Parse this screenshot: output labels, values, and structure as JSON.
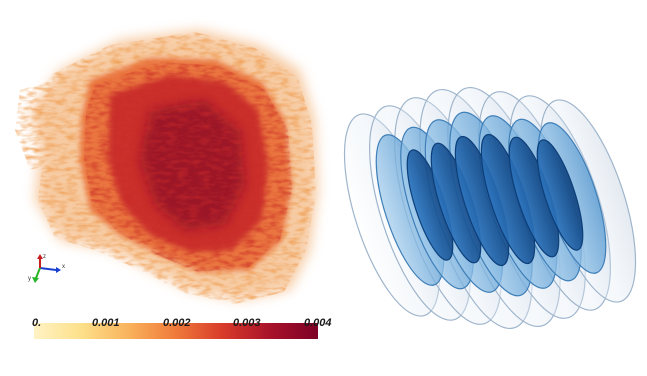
{
  "left_panel": {
    "name": "volume-rendering",
    "colorbar": {
      "ticks": [
        "0.",
        "0.001",
        "0.002",
        "0.003",
        "0.004"
      ],
      "colors": [
        "#fff3c4",
        "#fde08a",
        "#f9b25c",
        "#ef7a3a",
        "#d83a2a",
        "#a8122a",
        "#7d0026"
      ]
    },
    "axes_gizmo": {
      "x_label": "x",
      "y_label": "y",
      "z_label": "z",
      "x_color": "#1a3fd0",
      "y_color": "#27b327",
      "z_color": "#c81d1d"
    },
    "palette": {
      "outer": "#f0a158",
      "mid": "#e8662f",
      "inner": "#c8292a",
      "core": "#8e0a25"
    }
  },
  "right_panel": {
    "name": "isosurface-helix",
    "palette": {
      "outer_shell": "#dfe9f4",
      "outer_edge": "#9fb5cc",
      "middle_shell": "#7fb6e2",
      "inner_shell": "#1e5fa8",
      "inner_dark": "#0d3f7a"
    }
  }
}
